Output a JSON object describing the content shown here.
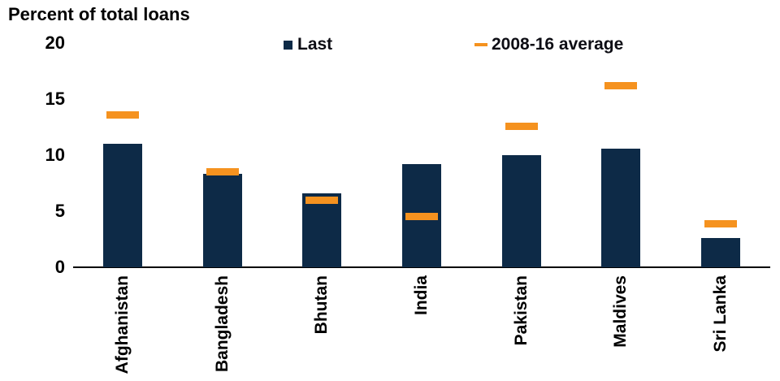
{
  "title": "Percent of total loans",
  "legend": {
    "last_label": "Last",
    "avg_label": "2008-16 average"
  },
  "colors": {
    "bar_navy": "#0d2a47",
    "avg_orange": "#f5921f",
    "axis_black": "#000000"
  },
  "chart_data": {
    "type": "bar",
    "title": "Percent of total loans",
    "categories": [
      "Afghanistan",
      "Bangladesh",
      "Bhutan",
      "India",
      "Pakistan",
      "Maldives",
      "Sri Lanka"
    ],
    "series": [
      {
        "name": "Last",
        "mark": "bar",
        "values": [
          11.0,
          8.3,
          6.6,
          9.2,
          10.0,
          10.6,
          2.6
        ]
      },
      {
        "name": "2008-16 average",
        "mark": "dash",
        "values": [
          13.6,
          8.5,
          6.0,
          4.5,
          12.6,
          16.2,
          3.9
        ]
      }
    ],
    "xlabel": "",
    "ylabel": "Percent of total loans",
    "ylim": [
      0,
      20
    ],
    "yticks": [
      0,
      5,
      10,
      15,
      20
    ],
    "grid": false,
    "legend_position": "top"
  }
}
